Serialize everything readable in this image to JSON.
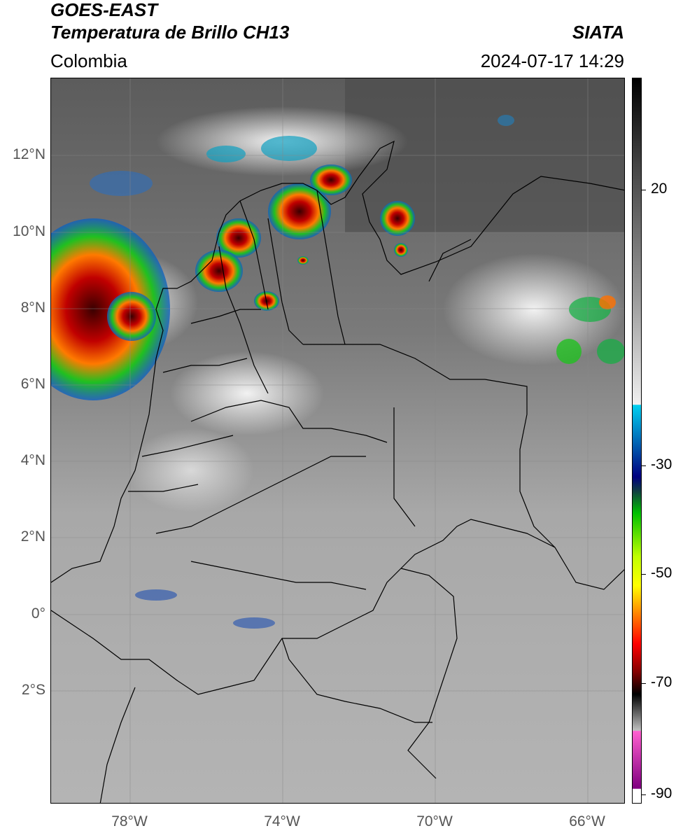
{
  "header": {
    "line1": "GOES-EAST",
    "line2": "Temperatura de Brillo CH13",
    "region": "Colombia",
    "organization": "SIATA",
    "datetime": "2024-07-17 14:29"
  },
  "map": {
    "lat_labels": [
      "12°N",
      "10°N",
      "8°N",
      "6°N",
      "4°N",
      "2°N",
      "0°",
      "2°S"
    ],
    "lon_labels": [
      "78°W",
      "74°W",
      "70°W",
      "66°W"
    ]
  },
  "colorbar": {
    "ticks": [
      "20",
      "-30",
      "-50",
      "-70",
      "-90"
    ]
  }
}
